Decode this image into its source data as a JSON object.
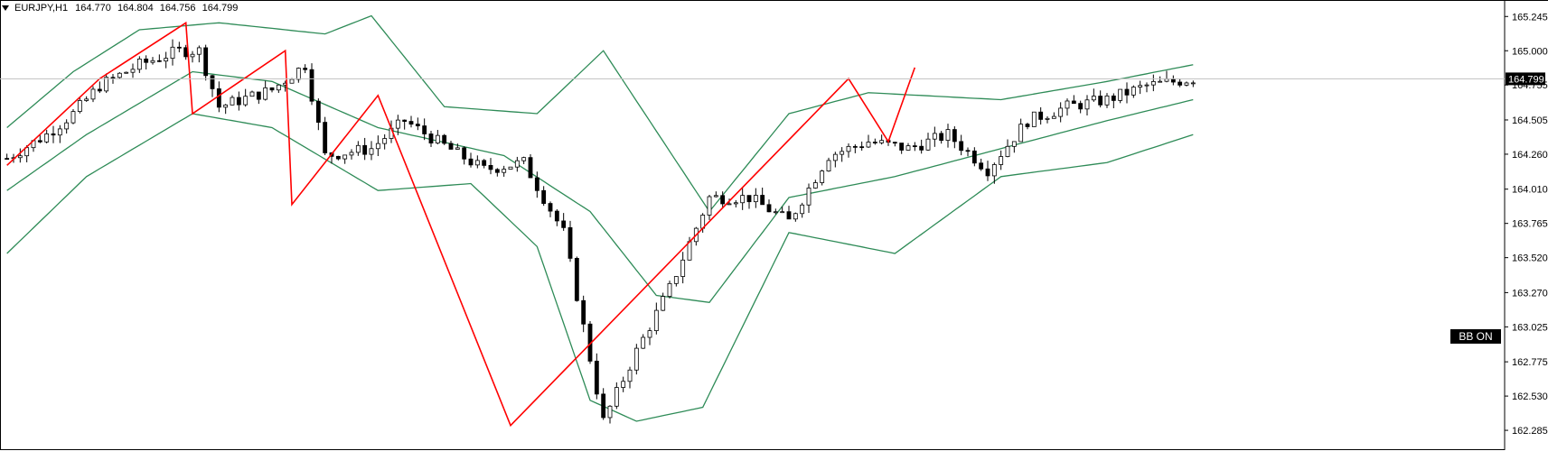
{
  "header": {
    "symbol": "EURJPY,H1",
    "open": "164.770",
    "high": "164.804",
    "low": "164.756",
    "close": "164.799"
  },
  "indicator_badge": "BB ON",
  "current_price": "164.799",
  "colors": {
    "bull_candle": "#ffffff",
    "bear_candle": "#000000",
    "bollinger": "#2e8b57",
    "zigzag": "#ff0000",
    "price_line": "#c0c0c0",
    "price_tag_bg": "#000000"
  },
  "chart_data": {
    "type": "candlestick",
    "title": "EURJPY,H1",
    "ylim": [
      162.15,
      165.35
    ],
    "y_ticks": [
      "165.245",
      "165.000",
      "164.755",
      "164.505",
      "164.260",
      "164.010",
      "163.765",
      "163.520",
      "163.270",
      "163.025",
      "162.775",
      "162.530",
      "162.285"
    ],
    "current_price": 164.799,
    "candle_count": 180,
    "candle_close_path": [
      {
        "index": 0,
        "price": 164.23
      },
      {
        "index": 6,
        "price": 164.4
      },
      {
        "index": 10,
        "price": 164.55
      },
      {
        "index": 14,
        "price": 164.75
      },
      {
        "index": 20,
        "price": 164.9
      },
      {
        "index": 26,
        "price": 165.0
      },
      {
        "index": 29,
        "price": 165.0
      },
      {
        "index": 32,
        "price": 164.6
      },
      {
        "index": 40,
        "price": 164.72
      },
      {
        "index": 45,
        "price": 164.9
      },
      {
        "index": 48,
        "price": 164.25
      },
      {
        "index": 55,
        "price": 164.3
      },
      {
        "index": 60,
        "price": 164.5
      },
      {
        "index": 65,
        "price": 164.35
      },
      {
        "index": 72,
        "price": 164.15
      },
      {
        "index": 78,
        "price": 164.2
      },
      {
        "index": 84,
        "price": 163.7
      },
      {
        "index": 90,
        "price": 162.35
      },
      {
        "index": 95,
        "price": 162.85
      },
      {
        "index": 100,
        "price": 163.3
      },
      {
        "index": 106,
        "price": 163.95
      },
      {
        "index": 112,
        "price": 163.95
      },
      {
        "index": 118,
        "price": 163.78
      },
      {
        "index": 124,
        "price": 164.25
      },
      {
        "index": 130,
        "price": 164.35
      },
      {
        "index": 136,
        "price": 164.3
      },
      {
        "index": 142,
        "price": 164.4
      },
      {
        "index": 148,
        "price": 164.15
      },
      {
        "index": 154,
        "price": 164.5
      },
      {
        "index": 160,
        "price": 164.6
      },
      {
        "index": 166,
        "price": 164.65
      },
      {
        "index": 172,
        "price": 164.75
      },
      {
        "index": 179,
        "price": 164.8
      }
    ],
    "bollinger_upper": [
      {
        "index": 0,
        "price": 164.45
      },
      {
        "index": 10,
        "price": 164.85
      },
      {
        "index": 20,
        "price": 165.15
      },
      {
        "index": 32,
        "price": 165.2
      },
      {
        "index": 48,
        "price": 165.12
      },
      {
        "index": 55,
        "price": 165.25
      },
      {
        "index": 66,
        "price": 164.6
      },
      {
        "index": 80,
        "price": 164.55
      },
      {
        "index": 90,
        "price": 165.0
      },
      {
        "index": 106,
        "price": 163.85
      },
      {
        "index": 118,
        "price": 164.55
      },
      {
        "index": 130,
        "price": 164.7
      },
      {
        "index": 150,
        "price": 164.65
      },
      {
        "index": 166,
        "price": 164.78
      },
      {
        "index": 179,
        "price": 164.9
      }
    ],
    "bollinger_middle": [
      {
        "index": 0,
        "price": 164.0
      },
      {
        "index": 12,
        "price": 164.4
      },
      {
        "index": 28,
        "price": 164.85
      },
      {
        "index": 40,
        "price": 164.78
      },
      {
        "index": 56,
        "price": 164.45
      },
      {
        "index": 75,
        "price": 164.25
      },
      {
        "index": 88,
        "price": 163.85
      },
      {
        "index": 98,
        "price": 163.25
      },
      {
        "index": 106,
        "price": 163.2
      },
      {
        "index": 118,
        "price": 163.95
      },
      {
        "index": 134,
        "price": 164.1
      },
      {
        "index": 150,
        "price": 164.3
      },
      {
        "index": 166,
        "price": 164.5
      },
      {
        "index": 179,
        "price": 164.65
      }
    ],
    "bollinger_lower": [
      {
        "index": 0,
        "price": 163.55
      },
      {
        "index": 12,
        "price": 164.1
      },
      {
        "index": 28,
        "price": 164.55
      },
      {
        "index": 40,
        "price": 164.45
      },
      {
        "index": 56,
        "price": 164.0
      },
      {
        "index": 70,
        "price": 164.05
      },
      {
        "index": 80,
        "price": 163.6
      },
      {
        "index": 88,
        "price": 162.5
      },
      {
        "index": 95,
        "price": 162.35
      },
      {
        "index": 105,
        "price": 162.45
      },
      {
        "index": 118,
        "price": 163.7
      },
      {
        "index": 134,
        "price": 163.55
      },
      {
        "index": 150,
        "price": 164.1
      },
      {
        "index": 166,
        "price": 164.2
      },
      {
        "index": 179,
        "price": 164.4
      }
    ],
    "zigzag": [
      {
        "index": 0,
        "price": 164.18
      },
      {
        "index": 14,
        "price": 164.8
      },
      {
        "index": 27,
        "price": 165.2
      },
      {
        "index": 28,
        "price": 164.55
      },
      {
        "index": 42,
        "price": 165.0
      },
      {
        "index": 43,
        "price": 163.9
      },
      {
        "index": 56,
        "price": 164.68
      },
      {
        "index": 76,
        "price": 162.32
      },
      {
        "index": 127,
        "price": 164.8
      },
      {
        "index": 133,
        "price": 164.35
      },
      {
        "index": 137,
        "price": 164.88
      }
    ]
  }
}
